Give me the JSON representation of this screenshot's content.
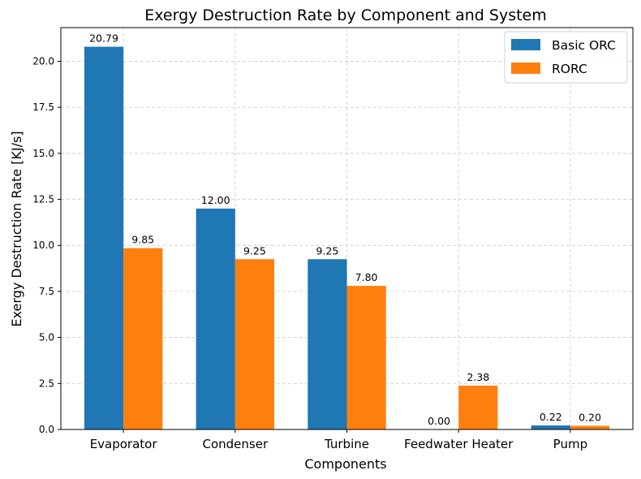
{
  "chart_data": {
    "type": "bar",
    "title": "Exergy Destruction Rate by Component and System",
    "xlabel": "Components",
    "ylabel": "Exergy Destruction Rate [KJ/s]",
    "categories": [
      "Evaporator",
      "Condenser",
      "Turbine",
      "Feedwater Heater",
      "Pump"
    ],
    "series": [
      {
        "name": "Basic ORC",
        "color": "#1f77b4",
        "values": [
          20.79,
          12.0,
          9.25,
          0.0,
          0.22
        ],
        "labels": [
          "20.79",
          "12.00",
          "9.25",
          "0.00",
          "0.22"
        ]
      },
      {
        "name": "RORC",
        "color": "#ff7f0e",
        "values": [
          9.85,
          9.25,
          7.8,
          2.38,
          0.2
        ],
        "labels": [
          "9.85",
          "9.25",
          "7.80",
          "2.38",
          "0.20"
        ]
      }
    ],
    "ylim": [
      0,
      21.83
    ],
    "yticks": [
      0.0,
      2.5,
      5.0,
      7.5,
      10.0,
      12.5,
      15.0,
      17.5,
      20.0
    ],
    "ytick_labels": [
      "0.0",
      "2.5",
      "5.0",
      "7.5",
      "10.0",
      "12.5",
      "15.0",
      "17.5",
      "20.0"
    ],
    "grid": true,
    "legend_position": "top-right"
  }
}
